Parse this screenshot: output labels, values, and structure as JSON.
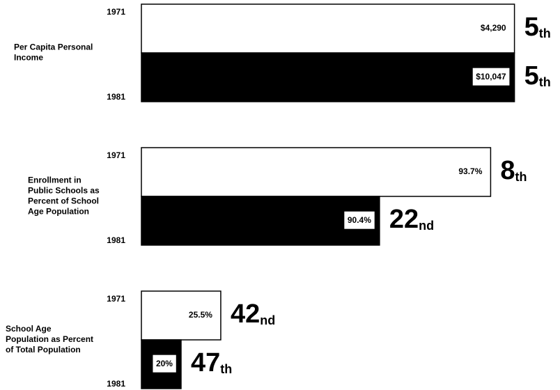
{
  "chart_data": [
    {
      "type": "bar",
      "title": [
        "Per Capita Personal",
        "Income"
      ],
      "categories": [
        "1971",
        "1981"
      ],
      "values": [
        4290,
        10047
      ],
      "value_labels": [
        "$4,290",
        "$10,047"
      ],
      "ranks": [
        5,
        5
      ],
      "rank_labels": [
        "5th",
        "5th"
      ],
      "colors": [
        "#ffffff",
        "#000000"
      ],
      "xlim": [
        52,
        4
      ]
    },
    {
      "type": "bar",
      "title": [
        "Enrollment in",
        "Public Schools as",
        "Percent of School",
        "Age Population"
      ],
      "categories": [
        "1971",
        "1981"
      ],
      "values": [
        93.7,
        90.4
      ],
      "value_labels": [
        "93.7%",
        "90.4%"
      ],
      "ranks": [
        8,
        22
      ],
      "rank_labels": [
        "8th",
        "22nd"
      ],
      "colors": [
        "#ffffff",
        "#000000"
      ],
      "xlim": [
        52,
        4
      ]
    },
    {
      "type": "bar",
      "title": [
        "School Age",
        "Population as Percent",
        "of Total Population"
      ],
      "categories": [
        "1971",
        "1981"
      ],
      "values": [
        25.5,
        20
      ],
      "value_labels": [
        "25.5%",
        "20%"
      ],
      "ranks": [
        42,
        47
      ],
      "rank_labels": [
        "42nd",
        "47th"
      ],
      "colors": [
        "#ffffff",
        "#000000"
      ],
      "xlim": [
        52,
        4
      ]
    }
  ]
}
